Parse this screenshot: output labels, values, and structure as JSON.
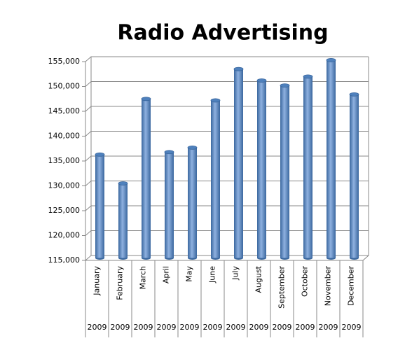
{
  "chart_data": {
    "type": "bar",
    "title": "Radio Advertising",
    "categories": [
      "January",
      "February",
      "March",
      "April",
      "May",
      "June",
      "July",
      "August",
      "September",
      "October",
      "November",
      "December"
    ],
    "category_groups": [
      "2009",
      "2009",
      "2009",
      "2009",
      "2009",
      "2009",
      "2009",
      "2009",
      "2009",
      "2009",
      "2009",
      "2009"
    ],
    "values": [
      135800,
      130000,
      147000,
      136300,
      137200,
      146700,
      153000,
      150700,
      149700,
      151500,
      154800,
      147900
    ],
    "color": "#4f81bd",
    "ylim": [
      115000,
      155000
    ],
    "yticks": [
      {
        "value": 115000,
        "label": "115,000"
      },
      {
        "value": 120000,
        "label": "120,000"
      },
      {
        "value": 125000,
        "label": "125,000"
      },
      {
        "value": 130000,
        "label": "130,000"
      },
      {
        "value": 135000,
        "label": "135,000"
      },
      {
        "value": 140000,
        "label": "140,000"
      },
      {
        "value": 145000,
        "label": "145,000"
      },
      {
        "value": 150000,
        "label": "150,000"
      },
      {
        "value": 155000,
        "label": "155,000"
      }
    ],
    "grid": true
  }
}
